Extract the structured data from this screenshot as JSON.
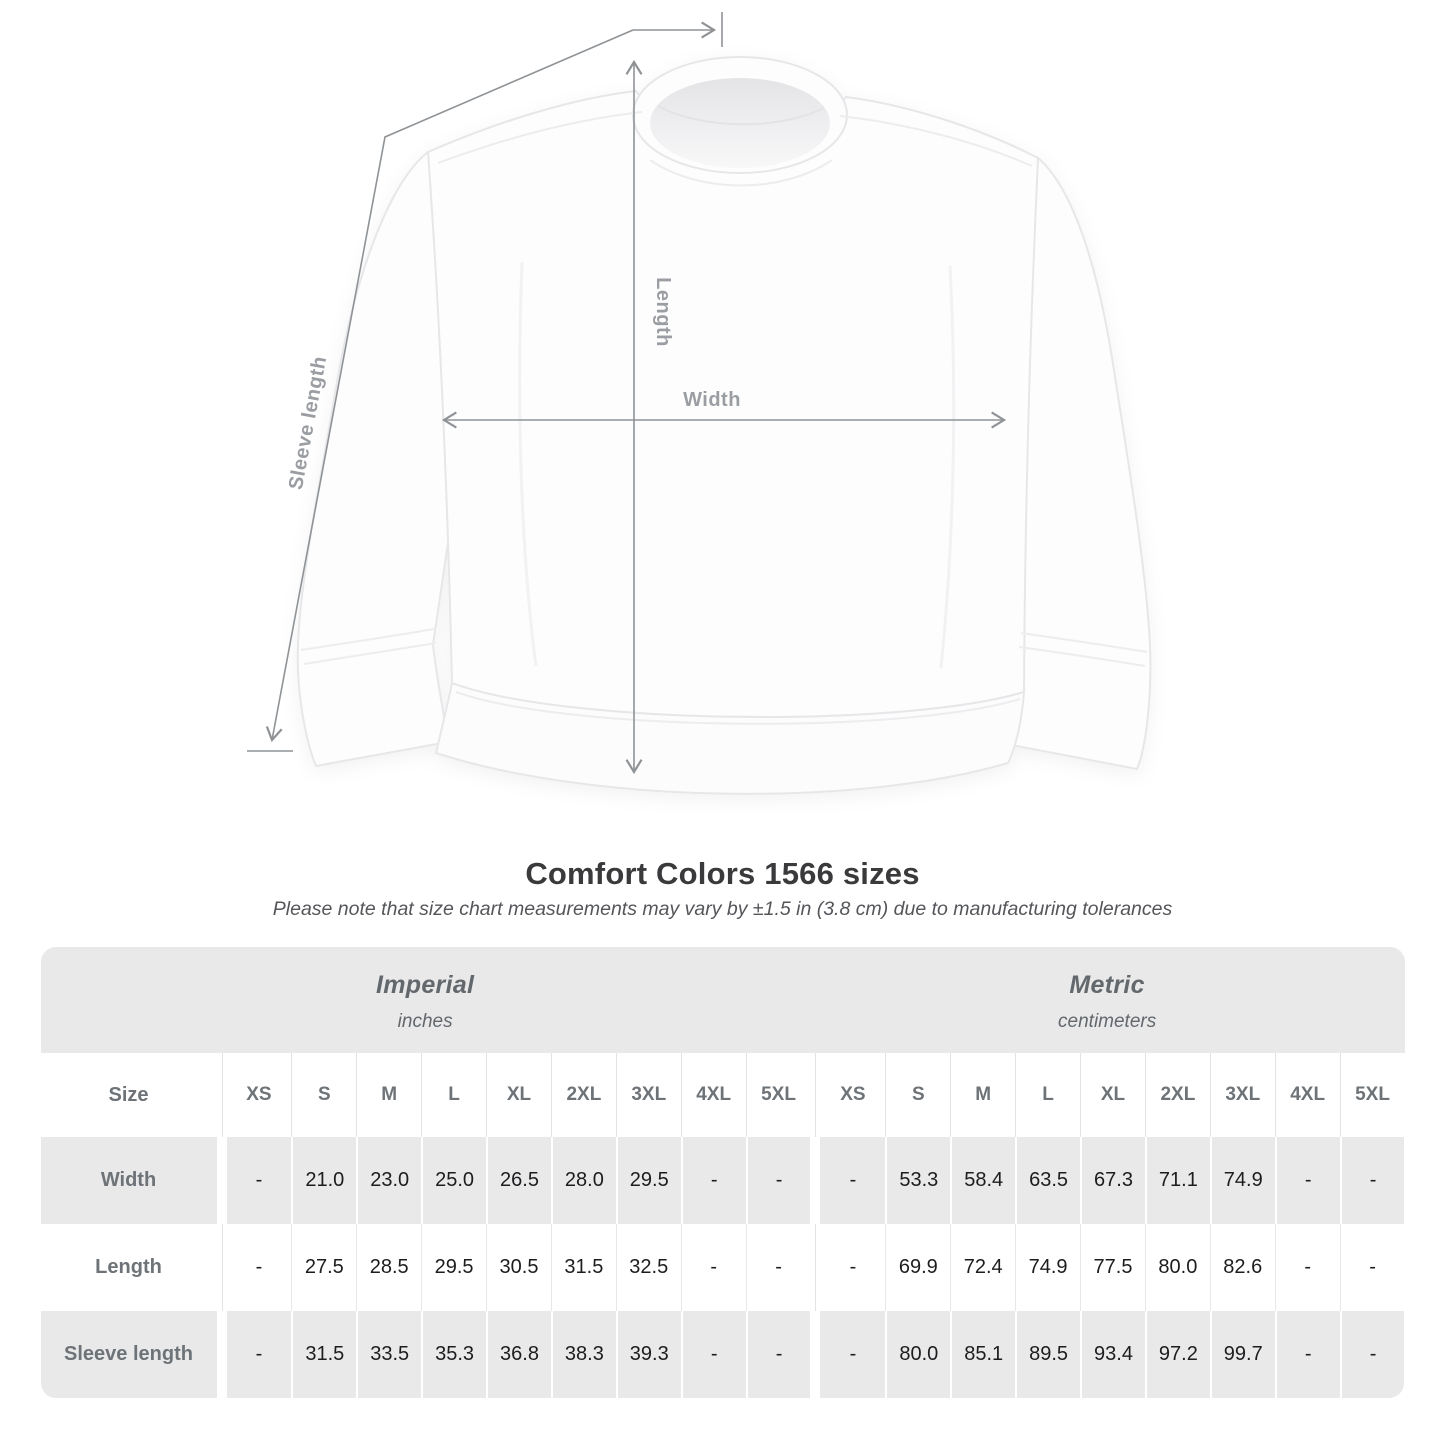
{
  "diagram": {
    "width_label": "Width",
    "length_label": "Length",
    "sleeve_label": "Sleeve length"
  },
  "chart_data": {
    "type": "table",
    "title": "Comfort Colors 1566 sizes",
    "note": "Please note that size chart measurements may vary by ±1.5 in (3.8 cm) due to manufacturing tolerances",
    "unit_groups": [
      {
        "label": "Imperial",
        "unit": "inches"
      },
      {
        "label": "Metric",
        "unit": "centimeters"
      }
    ],
    "size_header": "Size",
    "sizes": [
      "XS",
      "S",
      "M",
      "L",
      "XL",
      "2XL",
      "3XL",
      "4XL",
      "5XL"
    ],
    "rows": [
      {
        "label": "Width",
        "imperial": [
          "-",
          "21.0",
          "23.0",
          "25.0",
          "26.5",
          "28.0",
          "29.5",
          "-",
          "-"
        ],
        "metric": [
          "-",
          "53.3",
          "58.4",
          "63.5",
          "67.3",
          "71.1",
          "74.9",
          "-",
          "-"
        ]
      },
      {
        "label": "Length",
        "imperial": [
          "-",
          "27.5",
          "28.5",
          "29.5",
          "30.5",
          "31.5",
          "32.5",
          "-",
          "-"
        ],
        "metric": [
          "-",
          "69.9",
          "72.4",
          "74.9",
          "77.5",
          "80.0",
          "82.6",
          "-",
          "-"
        ]
      },
      {
        "label": "Sleeve length",
        "imperial": [
          "-",
          "31.5",
          "33.5",
          "35.3",
          "36.8",
          "38.3",
          "39.3",
          "-",
          "-"
        ],
        "metric": [
          "-",
          "80.0",
          "85.1",
          "89.5",
          "93.4",
          "97.2",
          "99.7",
          "-",
          "-"
        ]
      }
    ]
  },
  "colors": {
    "band_gray": "#e9e9ea",
    "label_gray": "#6e7378",
    "value_dark": "#1d1d1f",
    "measure_line": "#8f9396",
    "measure_label": "#9a9ea2"
  }
}
